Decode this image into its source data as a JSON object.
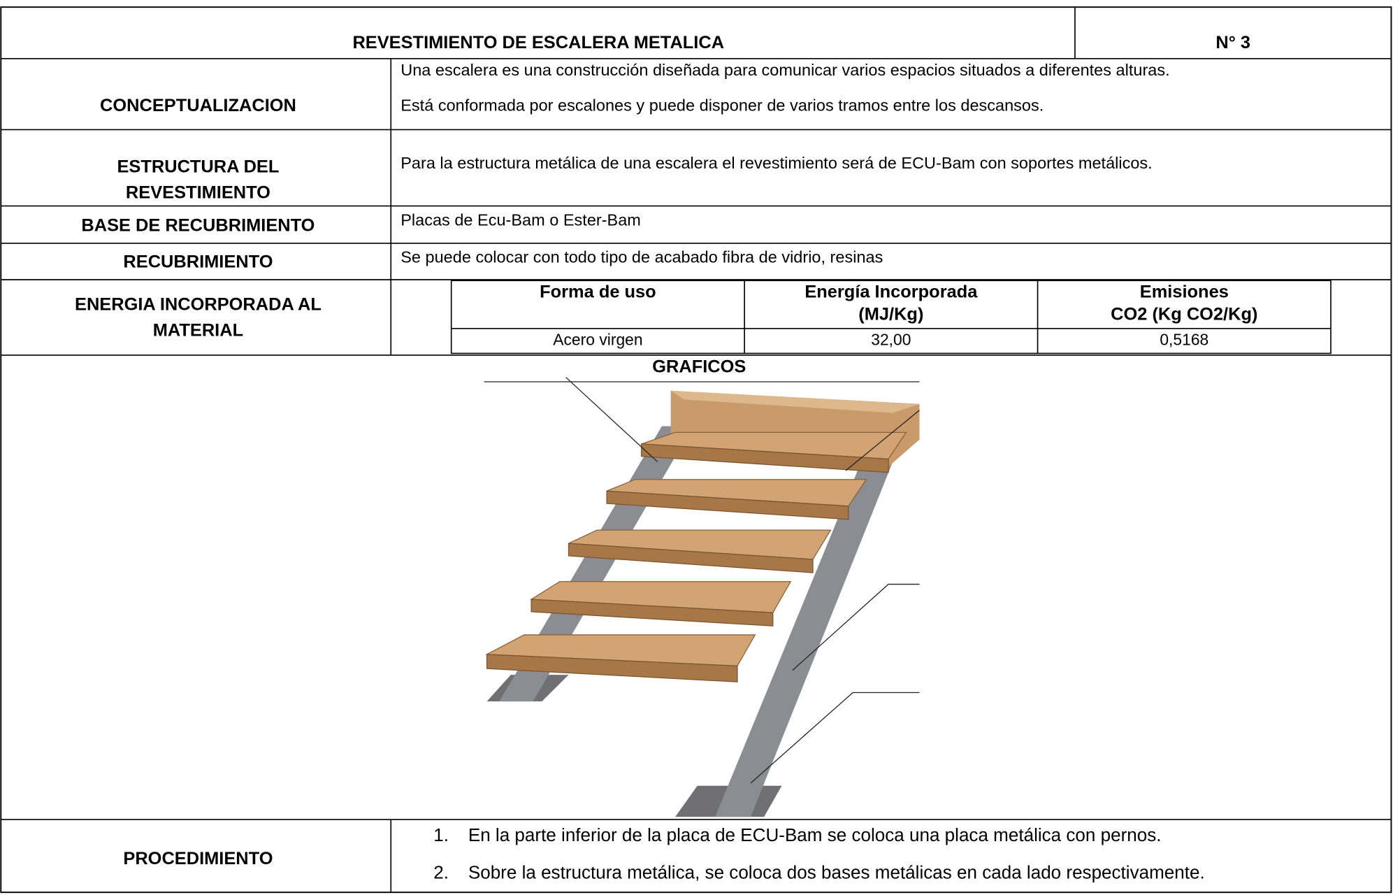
{
  "header": {
    "title": "REVESTIMIENTO DE ESCALERA METALICA",
    "number": "N° 3"
  },
  "conceptualizacion": {
    "label": "CONCEPTUALIZACION",
    "lines": [
      "Una escalera es una construcción diseñada para comunicar varios espacios situados a diferentes alturas.",
      "Está conformada por escalones y puede disponer de varios tramos entre los descansos."
    ]
  },
  "estructura": {
    "label": [
      "ESTRUCTURA DEL",
      "REVESTIMIENTO"
    ],
    "text": "Para la estructura metálica de una escalera el revestimiento será de ECU-Bam con soportes metálicos."
  },
  "base": {
    "label": "BASE DE RECUBRIMIENTO",
    "text": "Placas de Ecu-Bam o Ester-Bam"
  },
  "recubrimiento": {
    "label": "RECUBRIMIENTO",
    "text": "Se puede colocar con todo tipo de acabado fibra de vidrio, resinas"
  },
  "energia": {
    "label": [
      "ENERGIA INCORPORADA AL",
      "MATERIAL"
    ],
    "table": {
      "headers": [
        [
          "Forma de uso"
        ],
        [
          "Energía Incorporada",
          "(MJ/Kg)"
        ],
        [
          "Emisiones",
          "CO2 (Kg CO2/Kg)"
        ]
      ],
      "rows": [
        [
          "Acero virgen",
          "32,00",
          "0,5168"
        ]
      ]
    }
  },
  "graficos": {
    "title": "GRAFICOS"
  },
  "procedimiento": {
    "label": "PROCEDIMIENTO",
    "steps": [
      {
        "number": "1.",
        "text": "En la parte inferior de la placa de ECU-Bam se coloca una placa metálica con pernos."
      },
      {
        "number": "2.",
        "text": "Sobre la estructura metálica, se coloca dos bases metálicas en cada lado respectivamente."
      }
    ]
  }
}
